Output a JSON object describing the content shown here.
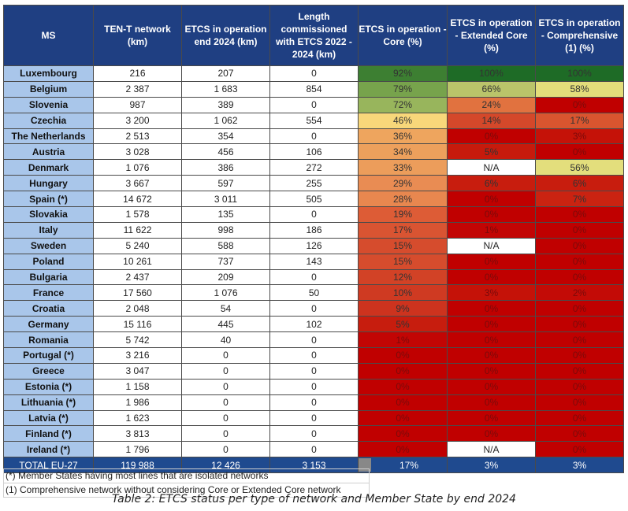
{
  "table": {
    "headers": [
      "MS",
      "TEN-T network (km)",
      "ETCS in operation end 2024 (km)",
      "Length commissioned with ETCS 2022 - 2024 (km)",
      "ETCS in operation - Core (%)",
      "ETCS in operation - Extended Core (%)",
      "ETCS in operation - Comprehensive (1) (%)"
    ],
    "rows": [
      {
        "ms": "Luxembourg",
        "tent": "216",
        "etcs": "207",
        "commissioned": "0",
        "core": "92%",
        "ext": "100%",
        "comp": "100%",
        "core_color": "#3d7f32",
        "ext_color": "#1e6b26",
        "comp_color": "#1e6b26"
      },
      {
        "ms": "Belgium",
        "tent": "2 387",
        "etcs": "1 683",
        "commissioned": "854",
        "core": "79%",
        "ext": "66%",
        "comp": "58%",
        "core_color": "#77a34c",
        "ext_color": "#bac46a",
        "comp_color": "#e3dd7a"
      },
      {
        "ms": "Slovenia",
        "tent": "987",
        "etcs": "389",
        "commissioned": "0",
        "core": "72%",
        "ext": "24%",
        "comp": "0%",
        "core_color": "#98b55c",
        "ext_color": "#e1723f",
        "comp_color": "#c00000"
      },
      {
        "ms": "Czechia",
        "tent": "3 200",
        "etcs": "1 062",
        "commissioned": "554",
        "core": "46%",
        "ext": "14%",
        "comp": "17%",
        "core_color": "#f8d77a",
        "ext_color": "#d4482a",
        "comp_color": "#d9552f"
      },
      {
        "ms": "The Netherlands",
        "tent": "2 513",
        "etcs": "354",
        "commissioned": "0",
        "core": "36%",
        "ext": "0%",
        "comp": "3%",
        "core_color": "#eea55e",
        "ext_color": "#c00000",
        "comp_color": "#c51208"
      },
      {
        "ms": "Austria",
        "tent": "3 028",
        "etcs": "456",
        "commissioned": "106",
        "core": "34%",
        "ext": "5%",
        "comp": "0%",
        "core_color": "#eda05c",
        "ext_color": "#c71a0c",
        "comp_color": "#c00000"
      },
      {
        "ms": "Denmark",
        "tent": "1 076",
        "etcs": "386",
        "commissioned": "272",
        "core": "33%",
        "ext": "N/A",
        "comp": "56%",
        "core_color": "#ec9d5b",
        "ext_color": "#ffffff",
        "comp_color": "#e3de7c"
      },
      {
        "ms": "Hungary",
        "tent": "3 667",
        "etcs": "597",
        "commissioned": "255",
        "core": "29%",
        "ext": "6%",
        "comp": "6%",
        "core_color": "#e98c53",
        "ext_color": "#c81d0e",
        "comp_color": "#c81d0e"
      },
      {
        "ms": "Spain (*)",
        "tent": "14 672",
        "etcs": "3 011",
        "commissioned": "505",
        "core": "28%",
        "ext": "0%",
        "comp": "7%",
        "core_color": "#e8874f",
        "ext_color": "#c00000",
        "comp_color": "#ca2311"
      },
      {
        "ms": "Slovakia",
        "tent": "1 578",
        "etcs": "135",
        "commissioned": "0",
        "core": "19%",
        "ext": "0%",
        "comp": "0%",
        "core_color": "#dd5c36",
        "ext_color": "#c00000",
        "comp_color": "#c00000"
      },
      {
        "ms": "Italy",
        "tent": "11 622",
        "etcs": "998",
        "commissioned": "186",
        "core": "17%",
        "ext": "1%",
        "comp": "0%",
        "core_color": "#d95432",
        "ext_color": "#c20504",
        "comp_color": "#c00000"
      },
      {
        "ms": "Sweden",
        "tent": "5 240",
        "etcs": "588",
        "commissioned": "126",
        "core": "15%",
        "ext": "N/A",
        "comp": "0%",
        "core_color": "#d64c2d",
        "ext_color": "#ffffff",
        "comp_color": "#c00000"
      },
      {
        "ms": "Poland",
        "tent": "10 261",
        "etcs": "737",
        "commissioned": "143",
        "core": "15%",
        "ext": "0%",
        "comp": "0%",
        "core_color": "#d64c2d",
        "ext_color": "#c00000",
        "comp_color": "#c00000"
      },
      {
        "ms": "Bulgaria",
        "tent": "2 437",
        "etcs": "209",
        "commissioned": "0",
        "core": "12%",
        "ext": "0%",
        "comp": "0%",
        "core_color": "#d24226",
        "ext_color": "#c00000",
        "comp_color": "#c00000"
      },
      {
        "ms": "France",
        "tent": "17 560",
        "etcs": "1 076",
        "commissioned": "50",
        "core": "10%",
        "ext": "3%",
        "comp": "2%",
        "core_color": "#cf3a22",
        "ext_color": "#c51208",
        "comp_color": "#c30b06"
      },
      {
        "ms": "Croatia",
        "tent": "2 048",
        "etcs": "54",
        "commissioned": "0",
        "core": "9%",
        "ext": "0%",
        "comp": "0%",
        "core_color": "#cd331e",
        "ext_color": "#c00000",
        "comp_color": "#c00000"
      },
      {
        "ms": "Germany",
        "tent": "15 116",
        "etcs": "445",
        "commissioned": "102",
        "core": "5%",
        "ext": "0%",
        "comp": "0%",
        "core_color": "#c71d0e",
        "ext_color": "#c00000",
        "comp_color": "#c00000"
      },
      {
        "ms": "Romania",
        "tent": "5 742",
        "etcs": "40",
        "commissioned": "0",
        "core": "1%",
        "ext": "0%",
        "comp": "0%",
        "core_color": "#c20504",
        "ext_color": "#c00000",
        "comp_color": "#c00000"
      },
      {
        "ms": "Portugal (*)",
        "tent": "3 216",
        "etcs": "0",
        "commissioned": "0",
        "core": "0%",
        "ext": "0%",
        "comp": "0%",
        "core_color": "#c00000",
        "ext_color": "#c00000",
        "comp_color": "#c00000"
      },
      {
        "ms": "Greece",
        "tent": "3 047",
        "etcs": "0",
        "commissioned": "0",
        "core": "0%",
        "ext": "0%",
        "comp": "0%",
        "core_color": "#c00000",
        "ext_color": "#c00000",
        "comp_color": "#c00000"
      },
      {
        "ms": "Estonia (*)",
        "tent": "1 158",
        "etcs": "0",
        "commissioned": "0",
        "core": "0%",
        "ext": "0%",
        "comp": "0%",
        "core_color": "#c00000",
        "ext_color": "#c00000",
        "comp_color": "#c00000"
      },
      {
        "ms": "Lithuania (*)",
        "tent": "1 986",
        "etcs": "0",
        "commissioned": "0",
        "core": "0%",
        "ext": "0%",
        "comp": "0%",
        "core_color": "#c00000",
        "ext_color": "#c00000",
        "comp_color": "#c00000"
      },
      {
        "ms": "Latvia (*)",
        "tent": "1 623",
        "etcs": "0",
        "commissioned": "0",
        "core": "0%",
        "ext": "0%",
        "comp": "0%",
        "core_color": "#c00000",
        "ext_color": "#c00000",
        "comp_color": "#c00000"
      },
      {
        "ms": "Finland (*)",
        "tent": "3 813",
        "etcs": "0",
        "commissioned": "0",
        "core": "0%",
        "ext": "0%",
        "comp": "0%",
        "core_color": "#c00000",
        "ext_color": "#c00000",
        "comp_color": "#c00000"
      },
      {
        "ms": "Ireland (*)",
        "tent": "1 796",
        "etcs": "0",
        "commissioned": "0",
        "core": "0%",
        "ext": "N/A",
        "comp": "0%",
        "core_color": "#c00000",
        "ext_color": "#ffffff",
        "comp_color": "#c00000"
      }
    ],
    "total": {
      "ms": "TOTAL EU-27",
      "tent": "119 988",
      "etcs": "12 426",
      "commissioned": "3 153",
      "core": "17%",
      "ext": "3%",
      "comp": "3%"
    }
  },
  "footnotes": [
    "(*) Member States having most lines that are isolated networks",
    "(1) Comprehensive network without considering Core or Extended Core network"
  ],
  "caption": "Table 2: ETCS status per type of network and Member State by end 2024",
  "colors": {
    "header_bg": "#1f3f82",
    "ms_bg": "#a9c6ea",
    "total_bg": "#1f4a8f"
  }
}
